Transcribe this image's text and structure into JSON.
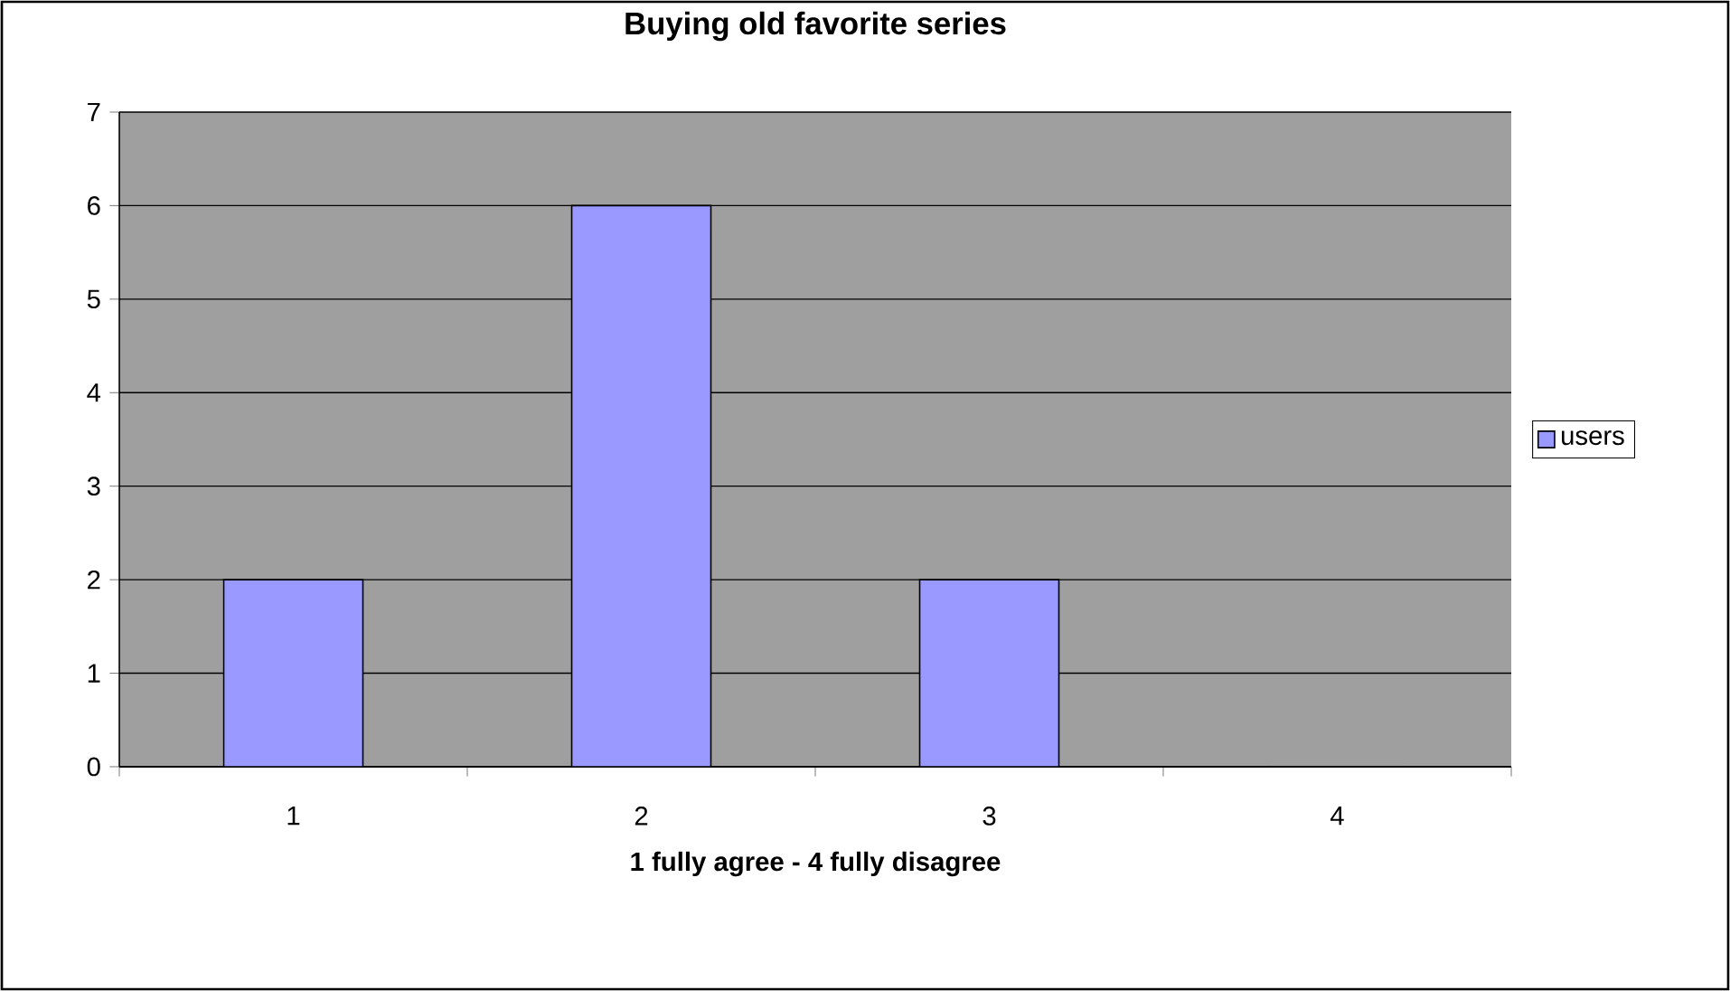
{
  "chart_data": {
    "type": "bar",
    "title": "Buying old favorite series",
    "xlabel": "1 fully agree - 4 fully disagree",
    "categories": [
      "1",
      "2",
      "3",
      "4"
    ],
    "series": [
      {
        "name": "users",
        "color": "#9999ff",
        "values": [
          2,
          6,
          2,
          0
        ]
      }
    ],
    "ylim": [
      0,
      7
    ],
    "yticks": [
      0,
      1,
      2,
      3,
      4,
      5,
      6,
      7
    ],
    "grid": "y",
    "legend": "right"
  }
}
